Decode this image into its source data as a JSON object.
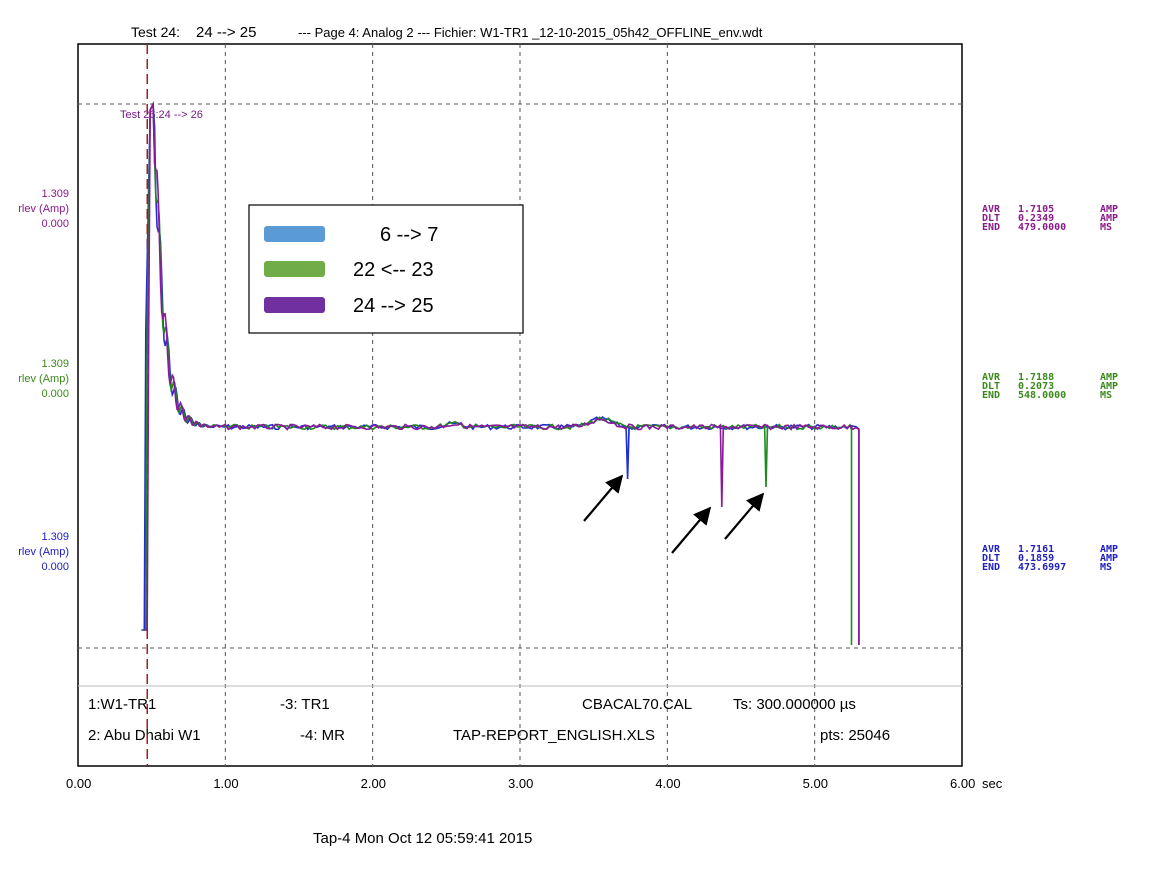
{
  "header": {
    "prefix": "Test 24:",
    "test_range": "24 --> 25",
    "rest": "--- Page 4: Analog 2 --- Fichier: W1-TR1 _12-10-2015_05h42_OFFLINE_env.wdt"
  },
  "footer": "Tap-4   Mon Oct 12 05:59:41 2015",
  "inplot_label": "Test 26:24 --> 26",
  "channels": [
    {
      "scale": "1.309",
      "unit": "rlev (Amp)",
      "zero": "0.000",
      "color": "#8a1a8a",
      "avr_label": "AVR",
      "avr": "1.7105",
      "dlt_label": "DLT",
      "dlt": "0.2349",
      "end_label": "END",
      "end": "479.0000",
      "amp": "AMP",
      "ms": "MS"
    },
    {
      "scale": "1.309",
      "unit": "rlev (Amp)",
      "zero": "0.000",
      "color": "#3a8a1a",
      "avr_label": "AVR",
      "avr": "1.7188",
      "dlt_label": "DLT",
      "dlt": "0.2073",
      "end_label": "END",
      "end": "548.0000",
      "amp": "AMP",
      "ms": "MS"
    },
    {
      "scale": "1.309",
      "unit": "rlev (Amp)",
      "zero": "0.000",
      "color": "#2020c0",
      "avr_label": "AVR",
      "avr": "1.7161",
      "dlt_label": "DLT",
      "dlt": "0.1859",
      "end_label": "END",
      "end": "473.6997",
      "amp": "AMP",
      "ms": "MS"
    }
  ],
  "info": {
    "left1": "1:W1-TR1",
    "left2": "2: Abu Dhabi W1",
    "mid1": "-3: TR1",
    "mid2": "-4: MR",
    "cal": "CBACAL70.CAL",
    "ts": "Ts: 300.000000 µs",
    "file": "TAP-REPORT_ENGLISH.XLS",
    "pts": "pts: 25046"
  },
  "chart_data": {
    "type": "line",
    "xlabel": "sec",
    "xlim": [
      0,
      6
    ],
    "x_ticks": [
      "0.00",
      "1.00",
      "2.00",
      "3.00",
      "4.00",
      "5.00",
      "6.00"
    ],
    "x_unit_label": "sec",
    "grid": true,
    "legend_position": "upper-left inside",
    "series": [
      {
        "name": "6 --> 7",
        "color": "#2030d0",
        "legend_color": "#5b9bd5",
        "drops": [
          {
            "x": 3.73,
            "depth": 52
          }
        ],
        "drop_final": 5.3
      },
      {
        "name": "22 <-- 23",
        "color": "#1f8a1f",
        "legend_color": "#70ad47",
        "drops": [
          {
            "x": 4.67,
            "depth": 60
          }
        ],
        "drop_final": 5.25
      },
      {
        "name": "24 --> 25",
        "color": "#8a1a9a",
        "legend_color": "#7030a0",
        "drops": [
          {
            "x": 4.37,
            "depth": 80
          }
        ],
        "drop_final": 5.3
      }
    ],
    "marker_x": 0.47,
    "arrows_at_x": [
      3.73,
      4.37,
      4.67
    ]
  }
}
